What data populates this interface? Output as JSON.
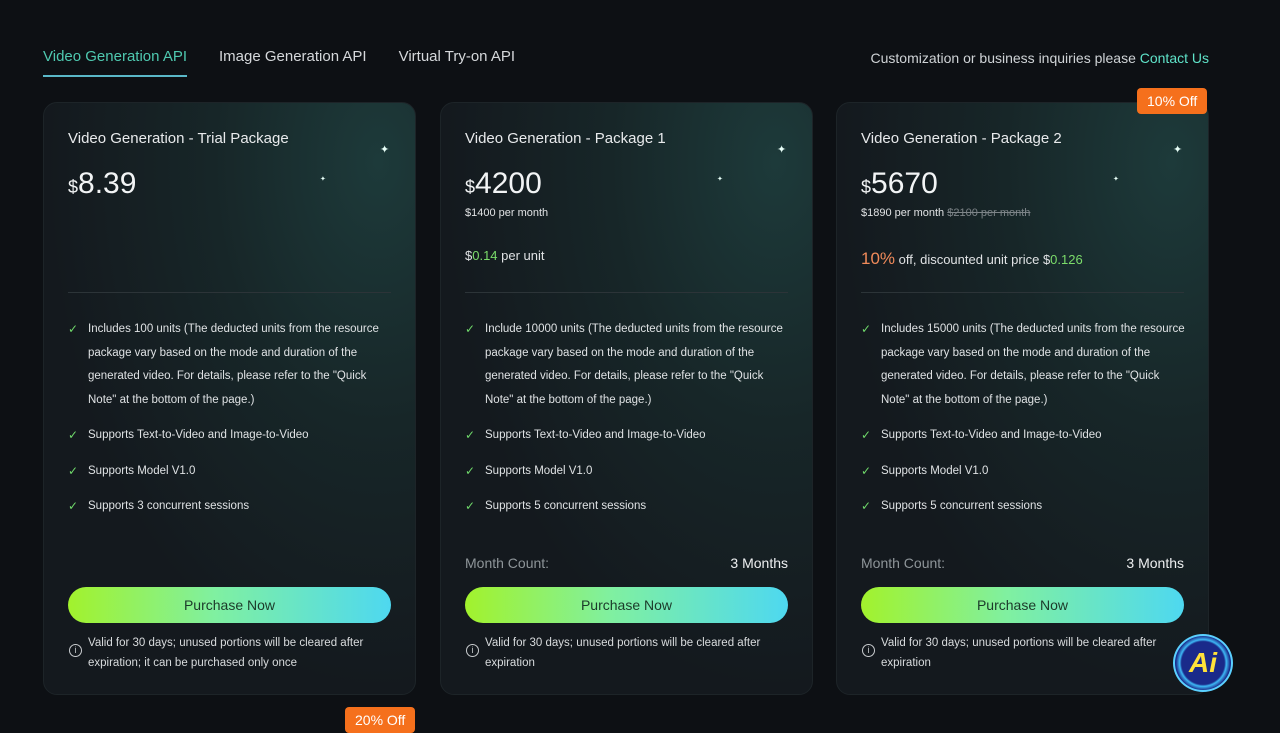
{
  "tabs": [
    {
      "label": "Video Generation API",
      "active": true
    },
    {
      "label": "Image Generation API"
    },
    {
      "label": "Virtual Try-on API"
    }
  ],
  "contact": {
    "text": "Customization or business inquiries please",
    "link": "Contact Us"
  },
  "cards": [
    {
      "title": "Video Generation - Trial Package",
      "currency": "$",
      "price": "8.39",
      "features": [
        "Includes 100 units (The deducted units from the resource package vary based on the mode and duration of the generated video. For details, please refer to the \"Quick Note\" at the bottom of the page.)",
        "Supports Text-to-Video and Image-to-Video",
        "Supports Model V1.0",
        "Supports 3 concurrent sessions"
      ],
      "button": "Purchase Now",
      "note": "Valid for 30 days; unused portions will be cleared after expiration; it can be purchased only once"
    },
    {
      "title": "Video Generation - Package 1",
      "currency": "$",
      "price": "4200",
      "per_month": "$1400 per month",
      "unit_prefix": "$",
      "unit_price": "0.14",
      "unit_suffix": " per unit",
      "features": [
        "Include 10000 units (The deducted units from the resource package vary based on the mode and duration of the generated video. For details, please refer to the \"Quick Note\" at the bottom of the page.)",
        "Supports Text-to-Video and Image-to-Video",
        "Supports Model V1.0",
        "Supports 5 concurrent sessions"
      ],
      "month_label": "Month Count:",
      "month_value": "3 Months",
      "button": "Purchase Now",
      "note": "Valid for 30 days; unused portions will be cleared after expiration"
    },
    {
      "title": "Video Generation - Package 2",
      "badge": "10% Off",
      "currency": "$",
      "price": "5670",
      "per_month": "$1890 per month",
      "old_per_month": "$2100 per month",
      "discount": "10%",
      "discount_text": " off, discounted unit price $",
      "unit_price": "0.126",
      "features": [
        "Includes 15000 units (The deducted units from the resource package vary based on the mode and duration of the generated video. For details, please refer to the \"Quick Note\" at the bottom of the page.)",
        "Supports Text-to-Video and Image-to-Video",
        "Supports Model V1.0",
        "Supports 5 concurrent sessions"
      ],
      "month_label": "Month Count:",
      "month_value": "3 Months",
      "button": "Purchase Now",
      "note": "Valid for 30 days; unused portions will be cleared after expiration"
    }
  ],
  "next_badge": "20% Off",
  "logo": "Ai",
  "colors": {
    "accent": "#5fe3c9",
    "badge": "#f5701c",
    "check": "#6fd86a"
  }
}
